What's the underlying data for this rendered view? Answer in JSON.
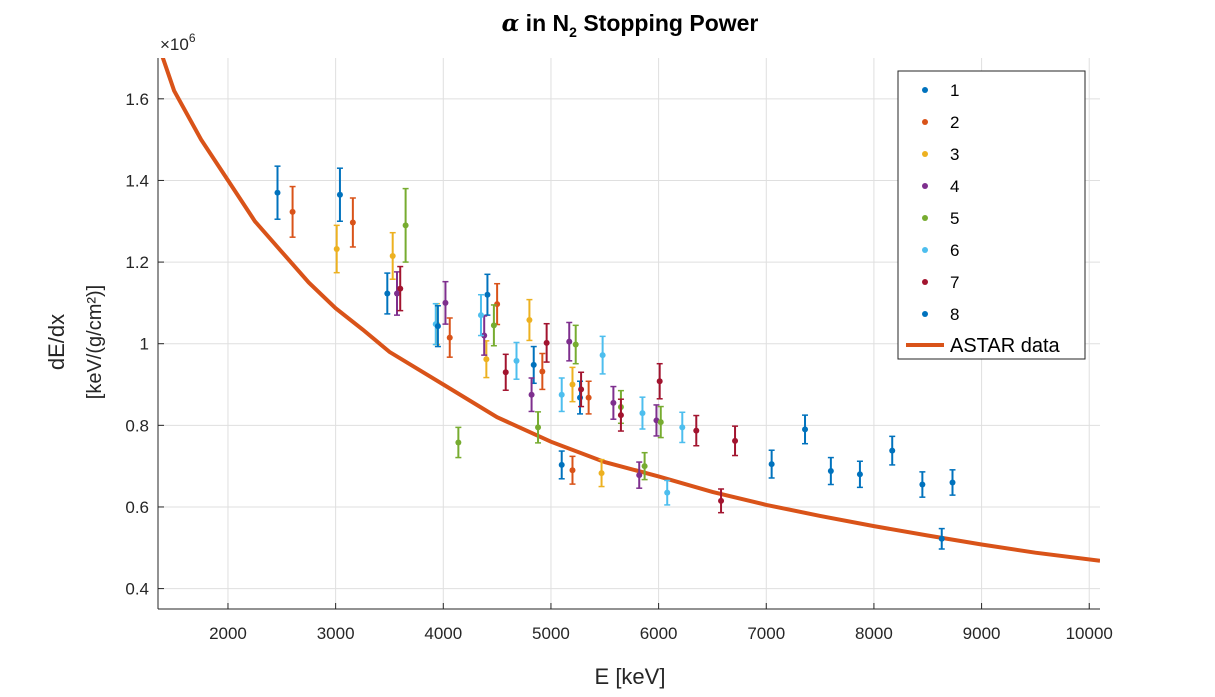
{
  "chart_data": {
    "type": "scatter",
    "title": {
      "greek": "α",
      "pre": " in N",
      "sub": "2",
      "post": " Stopping Power"
    },
    "xlabel": "E [keV]",
    "ylabel_line1": "dE/dx",
    "ylabel_line2": "[keV/(g/cm²)]",
    "y_exponent": {
      "base": "×10",
      "power": "6"
    },
    "xlim": [
      1350,
      10100
    ],
    "ylim": [
      0.35,
      1.7
    ],
    "xticks": [
      2000,
      3000,
      4000,
      5000,
      6000,
      7000,
      8000,
      9000,
      10000
    ],
    "yticks": [
      0.4,
      0.6,
      0.8,
      1.0,
      1.2,
      1.4,
      1.6
    ],
    "ytick_labels": [
      "0.4",
      "0.6",
      "0.8",
      "1",
      "1.2",
      "1.4",
      "1.6"
    ],
    "grid": true,
    "legend_position": "top-right",
    "series": [
      {
        "name": "1",
        "color": "#0072BD",
        "points": [
          {
            "x": 2460,
            "y": 1.37,
            "err": 0.065
          },
          {
            "x": 3040,
            "y": 1.365,
            "err": 0.065
          },
          {
            "x": 3480,
            "y": 1.123,
            "err": 0.05
          },
          {
            "x": 4410,
            "y": 1.12,
            "err": 0.05
          },
          {
            "x": 4840,
            "y": 0.948,
            "err": 0.045
          },
          {
            "x": 5270,
            "y": 0.868,
            "err": 0.04
          },
          {
            "x": 7360,
            "y": 0.79,
            "err": 0.035
          },
          {
            "x": 8170,
            "y": 0.738,
            "err": 0.035
          }
        ]
      },
      {
        "name": "2",
        "color": "#D95319",
        "points": [
          {
            "x": 2600,
            "y": 1.323,
            "err": 0.062
          },
          {
            "x": 3160,
            "y": 1.297,
            "err": 0.06
          },
          {
            "x": 4060,
            "y": 1.015,
            "err": 0.048
          },
          {
            "x": 4500,
            "y": 1.097,
            "err": 0.05
          },
          {
            "x": 4920,
            "y": 0.932,
            "err": 0.044
          },
          {
            "x": 5200,
            "y": 0.69,
            "err": 0.034
          },
          {
            "x": 5350,
            "y": 0.868,
            "err": 0.04
          }
        ]
      },
      {
        "name": "3",
        "color": "#EDB120",
        "points": [
          {
            "x": 3010,
            "y": 1.232,
            "err": 0.058
          },
          {
            "x": 3530,
            "y": 1.215,
            "err": 0.057
          },
          {
            "x": 3940,
            "y": 1.048,
            "err": 0.05
          },
          {
            "x": 4400,
            "y": 0.962,
            "err": 0.045
          },
          {
            "x": 4800,
            "y": 1.058,
            "err": 0.05
          },
          {
            "x": 5200,
            "y": 0.9,
            "err": 0.042
          },
          {
            "x": 5470,
            "y": 0.683,
            "err": 0.033
          }
        ]
      },
      {
        "name": "4",
        "color": "#7E2F8E",
        "points": [
          {
            "x": 3570,
            "y": 1.123,
            "err": 0.053
          },
          {
            "x": 4020,
            "y": 1.1,
            "err": 0.052
          },
          {
            "x": 4380,
            "y": 1.02,
            "err": 0.048
          },
          {
            "x": 4820,
            "y": 0.875,
            "err": 0.041
          },
          {
            "x": 5170,
            "y": 1.005,
            "err": 0.047
          },
          {
            "x": 5580,
            "y": 0.855,
            "err": 0.04
          },
          {
            "x": 5980,
            "y": 0.812,
            "err": 0.038
          },
          {
            "x": 5820,
            "y": 0.678,
            "err": 0.032
          }
        ]
      },
      {
        "name": "5",
        "color": "#77AC30",
        "points": [
          {
            "x": 3650,
            "y": 1.29,
            "err": 0.09
          },
          {
            "x": 4470,
            "y": 1.045,
            "err": 0.05
          },
          {
            "x": 4140,
            "y": 0.758,
            "err": 0.037
          },
          {
            "x": 4880,
            "y": 0.795,
            "err": 0.038
          },
          {
            "x": 5230,
            "y": 0.998,
            "err": 0.047
          },
          {
            "x": 5650,
            "y": 0.845,
            "err": 0.04
          },
          {
            "x": 6020,
            "y": 0.808,
            "err": 0.038
          },
          {
            "x": 5870,
            "y": 0.7,
            "err": 0.033
          }
        ]
      },
      {
        "name": "6",
        "color": "#4DBEEE",
        "points": [
          {
            "x": 3930,
            "y": 1.048,
            "err": 0.05
          },
          {
            "x": 4350,
            "y": 1.07,
            "err": 0.05
          },
          {
            "x": 4680,
            "y": 0.958,
            "err": 0.045
          },
          {
            "x": 5100,
            "y": 0.875,
            "err": 0.041
          },
          {
            "x": 5480,
            "y": 0.972,
            "err": 0.046
          },
          {
            "x": 5850,
            "y": 0.83,
            "err": 0.039
          },
          {
            "x": 6220,
            "y": 0.795,
            "err": 0.037
          },
          {
            "x": 6080,
            "y": 0.635,
            "err": 0.03
          }
        ]
      },
      {
        "name": "7",
        "color": "#A2142F",
        "points": [
          {
            "x": 3600,
            "y": 1.135,
            "err": 0.054
          },
          {
            "x": 4580,
            "y": 0.93,
            "err": 0.044
          },
          {
            "x": 4960,
            "y": 1.002,
            "err": 0.047
          },
          {
            "x": 5280,
            "y": 0.888,
            "err": 0.042
          },
          {
            "x": 5650,
            "y": 0.825,
            "err": 0.039
          },
          {
            "x": 6010,
            "y": 0.908,
            "err": 0.043
          },
          {
            "x": 6350,
            "y": 0.787,
            "err": 0.037
          },
          {
            "x": 6710,
            "y": 0.762,
            "err": 0.036
          },
          {
            "x": 6580,
            "y": 0.615,
            "err": 0.029
          }
        ]
      },
      {
        "name": "8",
        "color": "#0072BD",
        "points": [
          {
            "x": 3950,
            "y": 1.043,
            "err": 0.05
          },
          {
            "x": 5100,
            "y": 0.703,
            "err": 0.034
          },
          {
            "x": 7050,
            "y": 0.705,
            "err": 0.034
          },
          {
            "x": 7600,
            "y": 0.688,
            "err": 0.033
          },
          {
            "x": 7870,
            "y": 0.68,
            "err": 0.032
          },
          {
            "x": 8450,
            "y": 0.655,
            "err": 0.031
          },
          {
            "x": 8730,
            "y": 0.66,
            "err": 0.031
          },
          {
            "x": 8630,
            "y": 0.522,
            "err": 0.025
          }
        ]
      }
    ],
    "reference_curve": {
      "name": "ASTAR data",
      "color": "#D95319",
      "x": [
        1350,
        1500,
        1750,
        2000,
        2250,
        2500,
        2750,
        3000,
        3250,
        3500,
        4000,
        4500,
        5000,
        5500,
        6000,
        6500,
        7000,
        7500,
        8000,
        8500,
        9000,
        9500,
        10100
      ],
      "y": [
        1.735,
        1.62,
        1.5,
        1.4,
        1.3,
        1.225,
        1.15,
        1.087,
        1.035,
        0.98,
        0.9,
        0.82,
        0.76,
        0.71,
        0.675,
        0.637,
        0.605,
        0.578,
        0.553,
        0.53,
        0.508,
        0.488,
        0.468
      ]
    }
  }
}
